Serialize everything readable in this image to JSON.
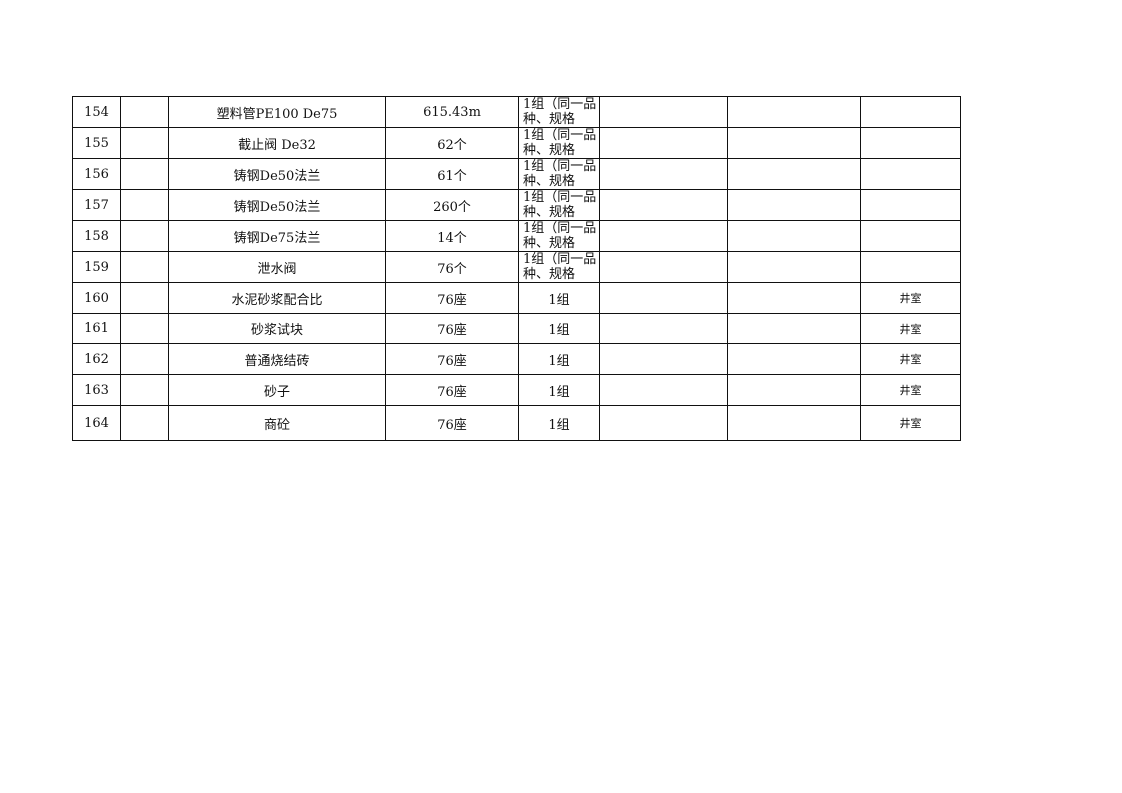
{
  "table": {
    "rows": [
      {
        "no": "154",
        "b": "",
        "name": "塑料管PE100 De75",
        "qty": "615.43m",
        "group": "1组（同一品种、规格",
        "f": "",
        "g": "",
        "note": ""
      },
      {
        "no": "155",
        "b": "",
        "name": "截止阀 De32",
        "qty": "62个",
        "group": "1组（同一品种、规格",
        "f": "",
        "g": "",
        "note": ""
      },
      {
        "no": "156",
        "b": "",
        "name": "铸钢De50法兰",
        "qty": "61个",
        "group": "1组（同一品种、规格",
        "f": "",
        "g": "",
        "note": ""
      },
      {
        "no": "157",
        "b": "",
        "name": "铸钢De50法兰",
        "qty": "260个",
        "group": "1组（同一品种、规格",
        "f": "",
        "g": "",
        "note": ""
      },
      {
        "no": "158",
        "b": "",
        "name": "铸钢De75法兰",
        "qty": "14个",
        "group": "1组（同一品种、规格",
        "f": "",
        "g": "",
        "note": ""
      },
      {
        "no": "159",
        "b": "",
        "name": "泄水阀",
        "qty": "76个",
        "group": "1组（同一品种、规格",
        "f": "",
        "g": "",
        "note": ""
      },
      {
        "no": "160",
        "b": "",
        "name": "水泥砂浆配合比",
        "qty": "76座",
        "group": "1组",
        "f": "",
        "g": "",
        "note": "井室"
      },
      {
        "no": "161",
        "b": "",
        "name": "砂浆试块",
        "qty": "76座",
        "group": "1组",
        "f": "",
        "g": "",
        "note": "井室"
      },
      {
        "no": "162",
        "b": "",
        "name": "普通烧结砖",
        "qty": "76座",
        "group": "1组",
        "f": "",
        "g": "",
        "note": "井室"
      },
      {
        "no": "163",
        "b": "",
        "name": "砂子",
        "qty": "76座",
        "group": "1组",
        "f": "",
        "g": "",
        "note": "井室"
      },
      {
        "no": "164",
        "b": "",
        "name": "商砼",
        "qty": "76座",
        "group": "1组",
        "f": "",
        "g": "",
        "note": "井室"
      }
    ]
  }
}
